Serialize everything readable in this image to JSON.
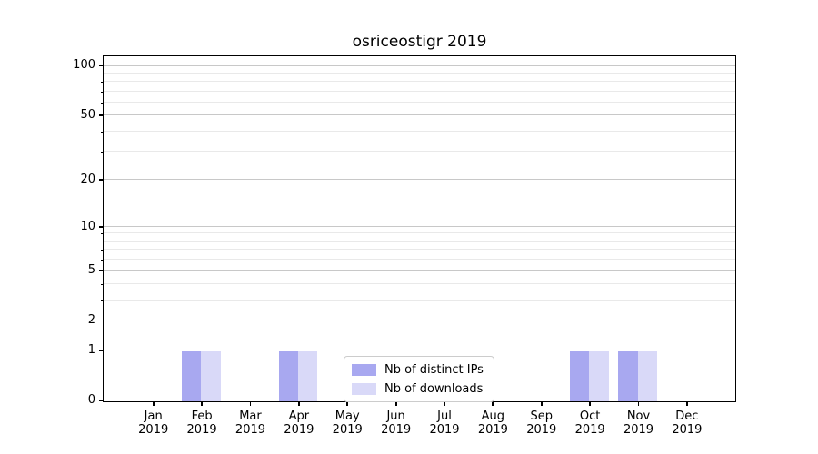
{
  "chart_data": {
    "type": "bar",
    "title": "osriceostigr 2019",
    "categories": [
      "Jan 2019",
      "Feb 2019",
      "Mar 2019",
      "Apr 2019",
      "May 2019",
      "Jun 2019",
      "Jul 2019",
      "Aug 2019",
      "Sep 2019",
      "Oct 2019",
      "Nov 2019",
      "Dec 2019"
    ],
    "x_months": [
      "Jan",
      "Feb",
      "Mar",
      "Apr",
      "May",
      "Jun",
      "Jul",
      "Aug",
      "Sep",
      "Oct",
      "Nov",
      "Dec"
    ],
    "x_year": "2019",
    "series": [
      {
        "name": "Nb of distinct IPs",
        "color": "#a8a8f0",
        "values": [
          0,
          1,
          0,
          1,
          0,
          0,
          0,
          0,
          0,
          1,
          1,
          0
        ]
      },
      {
        "name": "Nb of downloads",
        "color": "#d9d9f8",
        "values": [
          0,
          1,
          0,
          1,
          0,
          0,
          0,
          0,
          0,
          1,
          1,
          0
        ]
      }
    ],
    "yscale": "log1p",
    "ylim": [
      0,
      113
    ],
    "y_major_ticks": [
      0,
      1,
      2,
      5,
      10,
      20,
      50,
      100
    ],
    "y_minor_ticks": [
      3,
      4,
      6,
      7,
      8,
      9,
      30,
      40,
      60,
      70,
      80,
      90
    ],
    "grid": true,
    "legend_position": "lower-center",
    "colors": {
      "grid_major": "#c8c8c8",
      "grid_minor": "#e9e9e9",
      "spine": "#000000",
      "text": "#000000"
    }
  }
}
